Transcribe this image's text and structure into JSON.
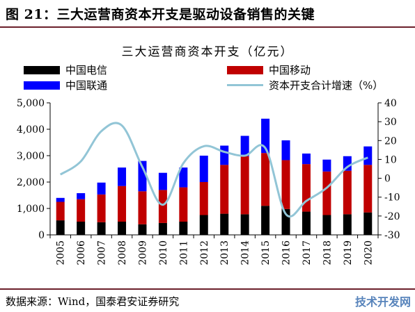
{
  "figure": {
    "title": "图 21：三大运营商资本开支是驱动设备销售的关键",
    "source": "数据来源：Wind，国泰君安证券研究",
    "watermark": "技术开发网"
  },
  "colors": {
    "telecom": "#000000",
    "mobile": "#c00000",
    "unicom": "#0000ff",
    "growth": "#92c5d6",
    "rule": "#6b1f2a"
  },
  "chart_data": {
    "type": "bar",
    "title": "三大运营商资本开支（亿元）",
    "stacked": true,
    "categories": [
      "2005",
      "2006",
      "2007",
      "2008",
      "2009",
      "2010",
      "2011",
      "2012",
      "2013",
      "2014",
      "2015",
      "2016",
      "2017",
      "2018",
      "2019",
      "2020"
    ],
    "series": [
      {
        "name": "中国电信",
        "values": [
          550,
          500,
          480,
          500,
          400,
          450,
          500,
          750,
          800,
          780,
          1100,
          980,
          880,
          750,
          780,
          850
        ]
      },
      {
        "name": "中国移动",
        "values": [
          700,
          850,
          1050,
          1350,
          1250,
          1250,
          1300,
          1250,
          1850,
          2200,
          2000,
          1850,
          1800,
          1650,
          1650,
          1800
        ]
      },
      {
        "name": "中国联通",
        "values": [
          150,
          230,
          450,
          700,
          1150,
          650,
          750,
          1000,
          730,
          770,
          1300,
          750,
          400,
          450,
          550,
          700
        ]
      }
    ],
    "line_series": {
      "name": "资本开支合计增速（%）",
      "axis": "right",
      "values": [
        2,
        9,
        25,
        28,
        6,
        -14,
        8,
        17,
        14,
        12,
        16,
        -19,
        -12,
        -5,
        6,
        11
      ]
    },
    "ylim": [
      0,
      5000
    ],
    "yticks": [
      "0",
      "1,000",
      "2,000",
      "3,000",
      "4,000",
      "5,000"
    ],
    "y2lim": [
      -30,
      40
    ],
    "y2ticks": [
      "-30",
      "-20",
      "-10",
      "0",
      "10",
      "20",
      "30",
      "40"
    ],
    "legend_position": "top"
  }
}
